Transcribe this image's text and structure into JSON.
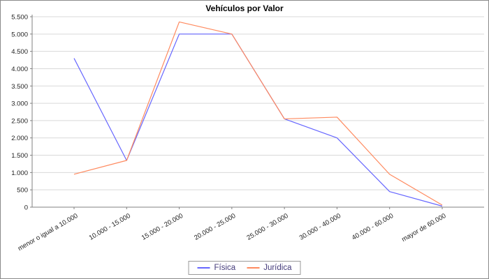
{
  "chart_data": {
    "type": "line",
    "title": "Vehículos por Valor",
    "categories": [
      "menor o igual a 10.000",
      "10.000 - 15.000",
      "15.000 - 20.000",
      "20.000 - 25.000",
      "25.000 - 30.000",
      "30.000 - 40.000",
      "40.000 - 60.000",
      "mayor de 60.000"
    ],
    "series": [
      {
        "name": "Física",
        "color": "#6666ff",
        "values": [
          4300,
          1350,
          5000,
          5000,
          2550,
          2000,
          450,
          30
        ]
      },
      {
        "name": "Jurídica",
        "color": "#ff8a5f",
        "values": [
          950,
          1350,
          5350,
          5000,
          2550,
          2600,
          950,
          60
        ]
      }
    ],
    "xlabel": "",
    "ylabel": "",
    "ylim": [
      0,
      5500
    ],
    "ytick_step": 500,
    "grid": true,
    "legend_position": "bottom"
  },
  "colors": {
    "grid": "#d9d9d9",
    "axis": "#808080",
    "tick_text": "#222222",
    "title_text": "#000000",
    "legend_text": "#433a7a",
    "legend_border": "#9a9a9a",
    "frame_border": "#8a8a8a"
  }
}
